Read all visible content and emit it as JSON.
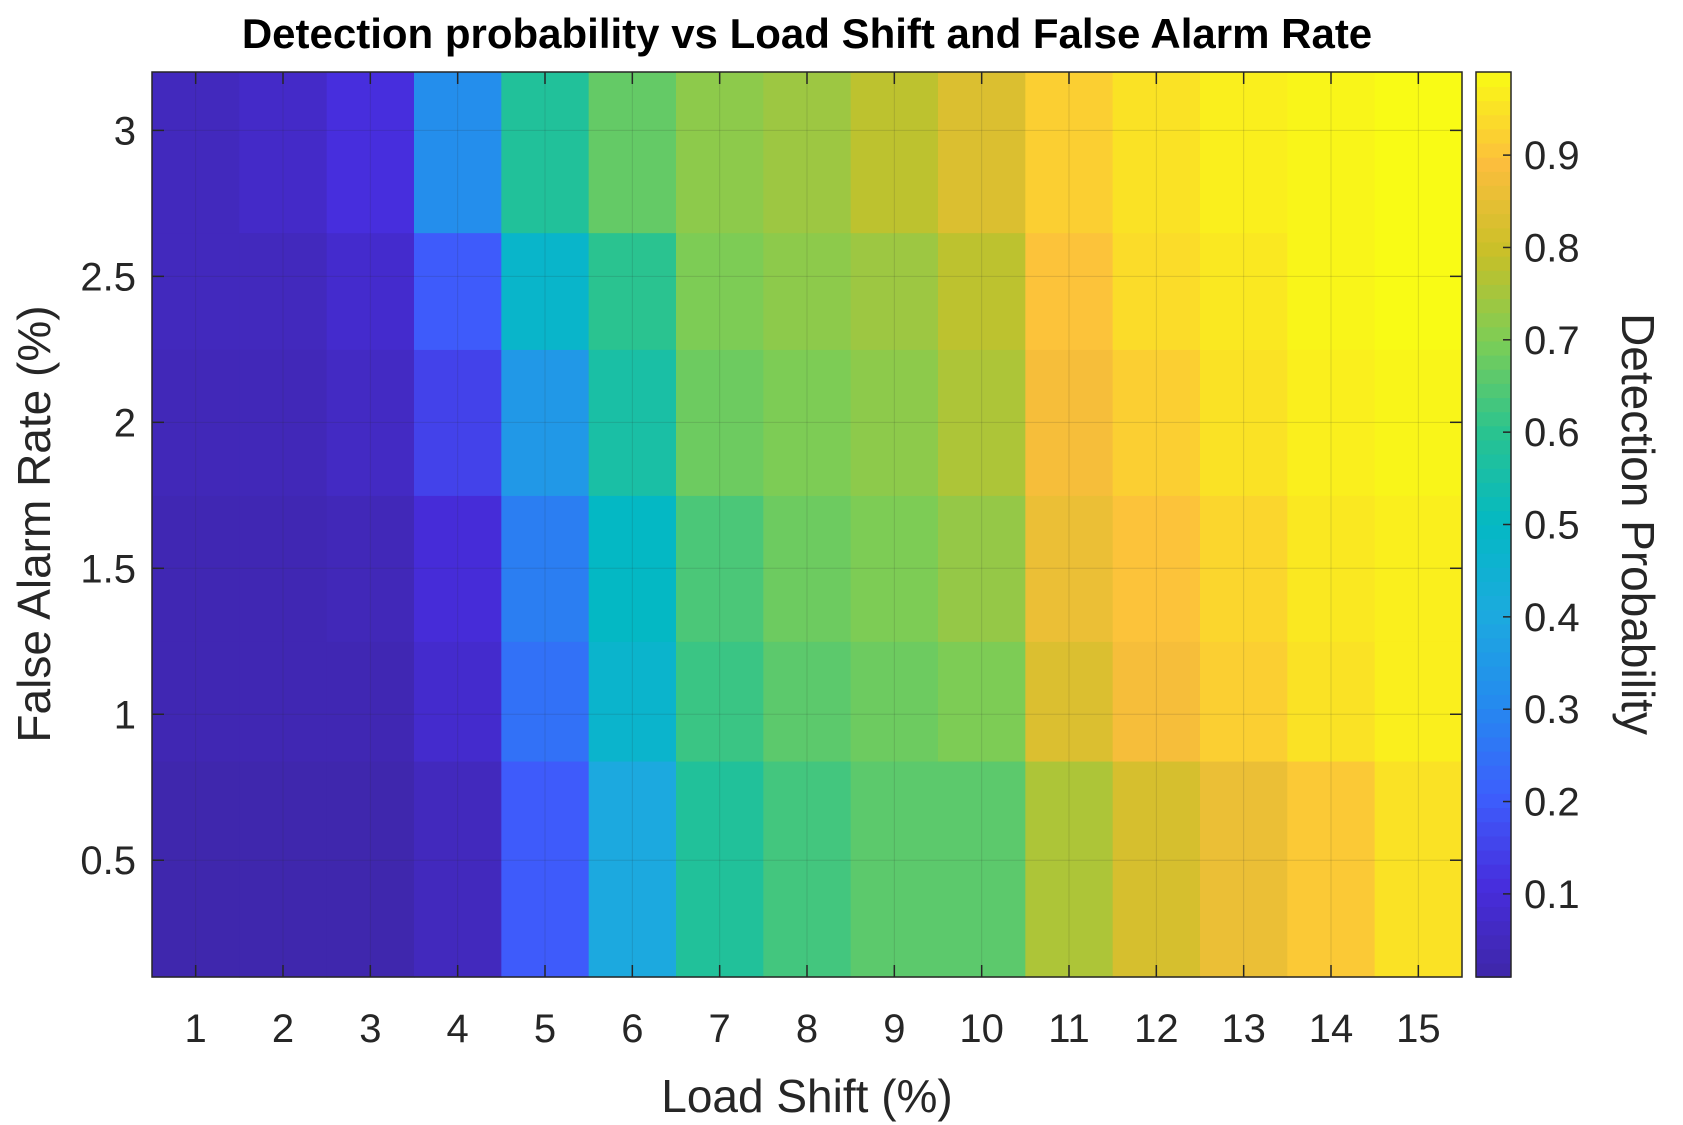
{
  "chart_data": {
    "type": "heatmap",
    "title": "Detection probability vs Load Shift and False Alarm Rate",
    "xlabel": "Load Shift (%)",
    "ylabel": "False Alarm Rate (%)",
    "colorbar_label": "Detection Probability",
    "colormap": "parula",
    "x_ticks": [
      "1",
      "2",
      "3",
      "4",
      "5",
      "6",
      "7",
      "8",
      "9",
      "10",
      "11",
      "12",
      "13",
      "14",
      "15"
    ],
    "y_ticks": [
      "0.5",
      "1",
      "1.5",
      "2",
      "2.5",
      "3"
    ],
    "colorbar_ticks": [
      "0.1",
      "0.2",
      "0.3",
      "0.4",
      "0.5",
      "0.6",
      "0.7",
      "0.8",
      "0.9"
    ],
    "x": [
      1,
      2,
      3,
      4,
      5,
      6,
      7,
      8,
      9,
      10,
      11,
      12,
      13,
      14,
      15
    ],
    "x_range": [
      0.5,
      15.5
    ],
    "y_range": [
      0.1,
      3.2
    ],
    "clim": [
      0.01,
      0.99
    ],
    "grid": true,
    "series": [
      {
        "y_range": [
          0.1,
          0.84
        ],
        "values": [
          0.02,
          0.02,
          0.02,
          0.05,
          0.2,
          0.4,
          0.58,
          0.63,
          0.66,
          0.66,
          0.76,
          0.82,
          0.86,
          0.91,
          0.95
        ]
      },
      {
        "y_range": [
          0.84,
          1.25
        ],
        "values": [
          0.03,
          0.03,
          0.03,
          0.08,
          0.25,
          0.47,
          0.62,
          0.66,
          0.68,
          0.7,
          0.83,
          0.88,
          0.92,
          0.95,
          0.97
        ]
      },
      {
        "y_range": [
          1.25,
          1.75
        ],
        "values": [
          0.03,
          0.03,
          0.04,
          0.1,
          0.28,
          0.5,
          0.64,
          0.68,
          0.7,
          0.73,
          0.86,
          0.9,
          0.93,
          0.96,
          0.97
        ]
      },
      {
        "y_range": [
          1.75,
          2.25
        ],
        "values": [
          0.04,
          0.04,
          0.06,
          0.15,
          0.35,
          0.56,
          0.68,
          0.7,
          0.72,
          0.76,
          0.88,
          0.92,
          0.95,
          0.97,
          0.98
        ]
      },
      {
        "y_range": [
          2.25,
          2.65
        ],
        "values": [
          0.05,
          0.05,
          0.08,
          0.2,
          0.48,
          0.6,
          0.7,
          0.72,
          0.74,
          0.78,
          0.9,
          0.94,
          0.96,
          0.98,
          0.99
        ]
      },
      {
        "y_range": [
          2.65,
          3.2
        ],
        "values": [
          0.05,
          0.07,
          0.11,
          0.32,
          0.58,
          0.67,
          0.72,
          0.74,
          0.78,
          0.83,
          0.92,
          0.95,
          0.97,
          0.98,
          0.99
        ]
      }
    ]
  }
}
